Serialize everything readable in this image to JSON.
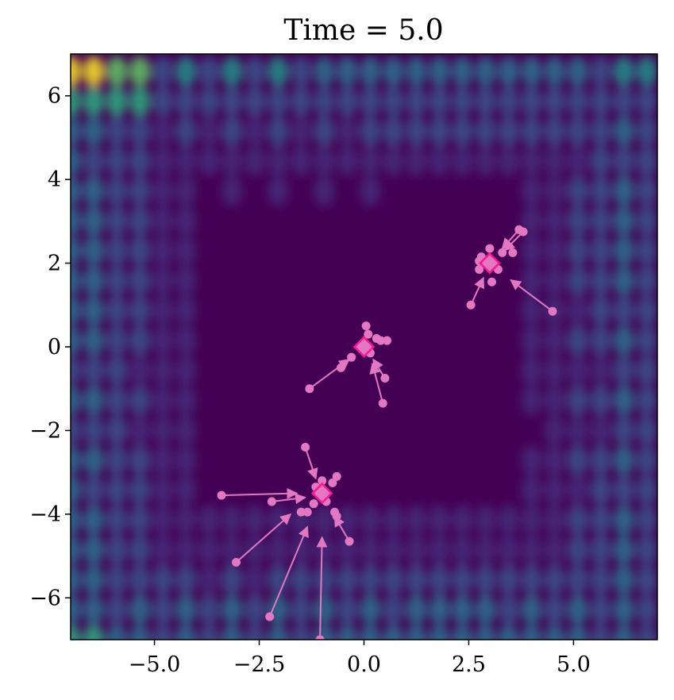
{
  "chart_data": {
    "type": "contour",
    "title": "Time = 5.0",
    "xlabel": "",
    "ylabel": "",
    "xlim": [
      -7,
      7
    ],
    "ylim": [
      -7,
      7
    ],
    "x_ticks": [
      -5.0,
      -2.5,
      0.0,
      2.5,
      5.0
    ],
    "x_tick_labels": [
      "−5.0",
      "−2.5",
      "0.0",
      "2.5",
      "5.0"
    ],
    "y_ticks": [
      -6,
      -4,
      -2,
      0,
      2,
      4,
      6
    ],
    "y_tick_labels": [
      "−6",
      "−4",
      "−2",
      "0",
      "2",
      "4",
      "6"
    ],
    "grid": false,
    "colormap": [
      "#440154",
      "#472c7a",
      "#3b528b",
      "#2c728e",
      "#21918c",
      "#28ae80",
      "#5ec962",
      "#addc30",
      "#fde725"
    ],
    "attractor_color": "#ff1493",
    "particle_color": "#e377c2",
    "attractors": [
      {
        "x": 0.0,
        "y": 0.0
      },
      {
        "x": 3.0,
        "y": 2.0
      },
      {
        "x": -1.0,
        "y": -3.5
      }
    ],
    "trajectories": [
      {
        "from": [
          -1.3,
          -1.0
        ],
        "to": [
          -0.35,
          -0.3
        ]
      },
      {
        "from": [
          0.5,
          -0.75
        ],
        "to": [
          0.22,
          -0.3
        ]
      },
      {
        "from": [
          0.45,
          -1.35
        ],
        "to": [
          0.2,
          -0.4
        ]
      },
      {
        "from": [
          4.5,
          0.85
        ],
        "to": [
          3.5,
          1.6
        ]
      },
      {
        "from": [
          3.7,
          2.8
        ],
        "to": [
          3.3,
          2.35
        ]
      },
      {
        "from": [
          3.8,
          2.75
        ],
        "to": [
          3.35,
          2.3
        ]
      },
      {
        "from": [
          2.55,
          1.0
        ],
        "to": [
          2.85,
          1.65
        ]
      },
      {
        "from": [
          -3.4,
          -3.55
        ],
        "to": [
          -1.6,
          -3.5
        ]
      },
      {
        "from": [
          -2.2,
          -3.7
        ],
        "to": [
          -1.4,
          -3.6
        ]
      },
      {
        "from": [
          -3.05,
          -5.15
        ],
        "to": [
          -1.75,
          -4.0
        ]
      },
      {
        "from": [
          -2.25,
          -6.45
        ],
        "to": [
          -1.35,
          -4.3
        ]
      },
      {
        "from": [
          -1.05,
          -7.0
        ],
        "to": [
          -1.0,
          -4.55
        ]
      },
      {
        "from": [
          -1.4,
          -2.4
        ],
        "to": [
          -1.15,
          -3.15
        ]
      },
      {
        "from": [
          -0.35,
          -4.65
        ],
        "to": [
          -0.7,
          -4.05
        ]
      }
    ],
    "particles": [
      {
        "x": -0.3,
        "y": -0.25
      },
      {
        "x": 0.05,
        "y": 0.5
      },
      {
        "x": 0.1,
        "y": 0.3
      },
      {
        "x": 0.3,
        "y": 0.2
      },
      {
        "x": 0.4,
        "y": 0.15
      },
      {
        "x": 0.55,
        "y": 0.15
      },
      {
        "x": -0.55,
        "y": -0.5
      },
      {
        "x": 0.15,
        "y": -0.15
      },
      {
        "x": 2.75,
        "y": 1.85
      },
      {
        "x": 2.8,
        "y": 2.15
      },
      {
        "x": 3.0,
        "y": 2.35
      },
      {
        "x": 3.3,
        "y": 2.25
      },
      {
        "x": 3.55,
        "y": 2.25
      },
      {
        "x": 3.05,
        "y": 1.55
      },
      {
        "x": 2.75,
        "y": 2.05
      },
      {
        "x": 3.2,
        "y": 1.85
      },
      {
        "x": -1.35,
        "y": -3.95
      },
      {
        "x": -1.5,
        "y": -3.95
      },
      {
        "x": -0.65,
        "y": -3.1
      },
      {
        "x": -0.75,
        "y": -3.25
      },
      {
        "x": -0.7,
        "y": -3.95
      },
      {
        "x": -0.65,
        "y": -4.05
      },
      {
        "x": -1.15,
        "y": -3.35
      },
      {
        "x": -1.0,
        "y": -3.2
      },
      {
        "x": -0.9,
        "y": -3.7
      },
      {
        "x": -1.2,
        "y": -3.75
      }
    ]
  }
}
